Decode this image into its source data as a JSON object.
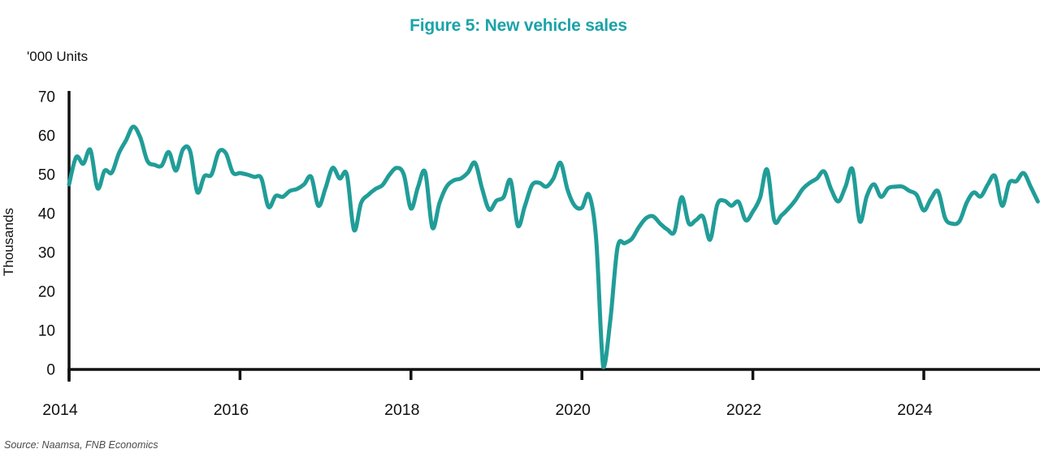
{
  "figure": {
    "title": "Figure 5: New vehicle sales",
    "unit_label": "'000 Units",
    "y_axis_title": "Thousands",
    "source": "Source: Naamsa, FNB Economics"
  },
  "colors": {
    "line": "#219D98",
    "title": "#1BA3A8",
    "axis": "#111111",
    "tick_text": "#111111",
    "source_text": "#4a4a4a"
  },
  "chart_data": {
    "type": "line",
    "title": "Figure 5: New vehicle sales",
    "unit": "'000 Units",
    "ylabel": "Thousands",
    "source": "Source: Naamsa, FNB Economics",
    "frequency": "monthly",
    "x_start": "2014-01",
    "x_end": "2025-05",
    "x_tick_labels": [
      "2014",
      "2016",
      "2018",
      "2020",
      "2022",
      "2024"
    ],
    "y_ticks": [
      0,
      10,
      20,
      30,
      40,
      50,
      60,
      70
    ],
    "ylim": [
      0,
      70
    ],
    "grid": false,
    "legend_position": "none",
    "series": [
      {
        "name": "New vehicle sales ('000 units)",
        "values": [
          47.5,
          54.5,
          52.8,
          56.3,
          46.5,
          51.0,
          50.5,
          55.5,
          58.8,
          62.3,
          59.5,
          53.5,
          52.5,
          52.3,
          55.8,
          51.0,
          56.5,
          56.0,
          45.5,
          49.6,
          50.0,
          55.8,
          55.5,
          50.5,
          50.4,
          50.0,
          49.4,
          49.0,
          41.7,
          44.5,
          44.3,
          45.8,
          46.3,
          47.5,
          49.4,
          42.0,
          46.5,
          51.7,
          49.0,
          50.0,
          35.8,
          42.7,
          44.8,
          46.3,
          47.3,
          50.0,
          51.7,
          50.0,
          41.3,
          46.9,
          50.6,
          36.4,
          42.7,
          46.9,
          48.5,
          49.0,
          50.5,
          53.0,
          46.3,
          41.0,
          43.3,
          44.2,
          48.5,
          36.9,
          42.0,
          47.3,
          47.9,
          46.9,
          49.0,
          53.0,
          46.0,
          42.0,
          41.5,
          44.8,
          33.5,
          0.6,
          12.9,
          31.3,
          32.4,
          33.5,
          36.5,
          38.8,
          39.3,
          37.4,
          35.9,
          35.4,
          44.2,
          37.5,
          38.3,
          39.2,
          33.3,
          42.3,
          43.3,
          42.0,
          43.0,
          38.3,
          40.5,
          44.0,
          51.3,
          38.3,
          39.5,
          41.3,
          43.5,
          46.3,
          47.9,
          49.0,
          50.8,
          46.2,
          43.1,
          46.9,
          51.3,
          38.0,
          44.5,
          47.5,
          44.3,
          46.5,
          46.9,
          46.9,
          45.8,
          44.8,
          40.8,
          43.8,
          45.7,
          38.8,
          37.4,
          38.0,
          42.7,
          45.4,
          44.4,
          47.5,
          49.6,
          42.0,
          47.9,
          48.3,
          50.4,
          46.9,
          43.1
        ]
      }
    ]
  }
}
